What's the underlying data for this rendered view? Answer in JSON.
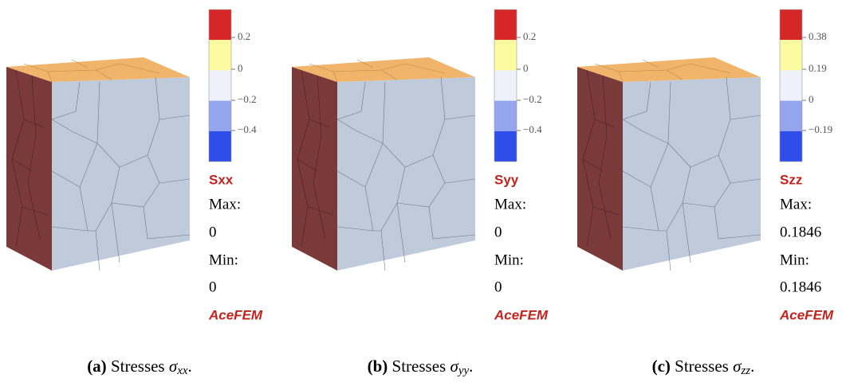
{
  "panels": [
    {
      "legend_ticks": [
        "0.2",
        "0",
        "−0.2",
        "−0.4"
      ],
      "field": "Sxx",
      "max_label": "Max:",
      "max": "0",
      "min_label": "Min:",
      "min": "0",
      "brand": "AceFEM",
      "caption_label": "(a)",
      "caption_prefix": "Stresses",
      "caption_symbol": "σ",
      "caption_subscript": "xx",
      "caption_suffix": "."
    },
    {
      "legend_ticks": [
        "0.2",
        "0",
        "−0.2",
        "−0.4"
      ],
      "field": "Syy",
      "max_label": "Max:",
      "max": "0",
      "min_label": "Min:",
      "min": "0",
      "brand": "AceFEM",
      "caption_label": "(b)",
      "caption_prefix": "Stresses",
      "caption_symbol": "σ",
      "caption_subscript": "yy",
      "caption_suffix": "."
    },
    {
      "legend_ticks": [
        "0.38",
        "0.19",
        "0",
        "−0.19"
      ],
      "field": "Szz",
      "max_label": "Max:",
      "max": "0.1846",
      "min_label": "Min:",
      "min": "0.1846",
      "brand": "AceFEM",
      "caption_label": "(c)",
      "caption_prefix": "Stresses",
      "caption_symbol": "σ",
      "caption_subscript": "zz",
      "caption_suffix": "."
    }
  ]
}
